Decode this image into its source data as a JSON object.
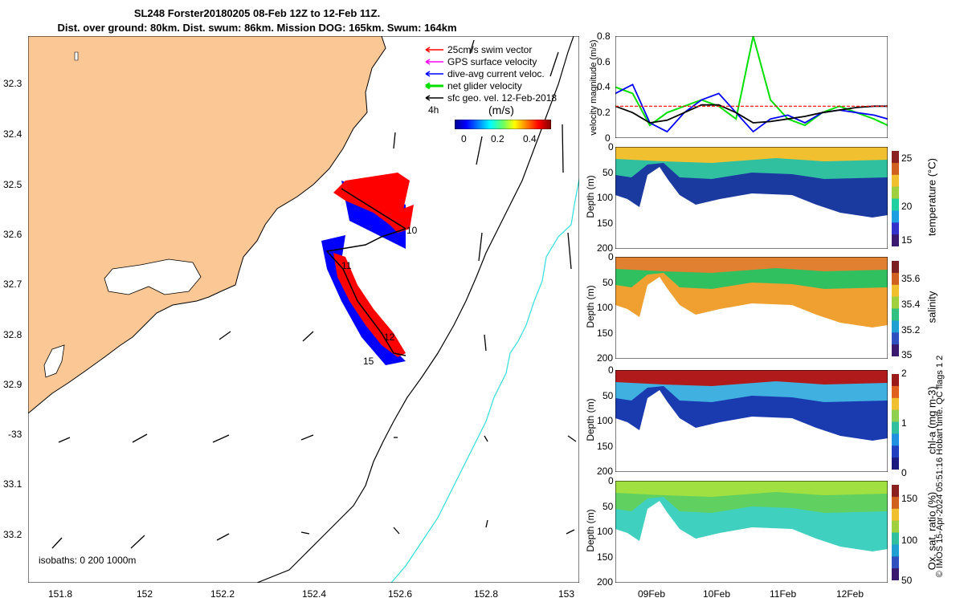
{
  "header": {
    "line1": "SL248 Forster20180205 08-Feb 12Z to 12-Feb 11Z.",
    "line2": "Dist. over ground: 80km. Dist. swum: 86km. Mission DOG: 165km. Swum: 164km"
  },
  "legend": {
    "items": [
      {
        "label": "25cm/s swim vector",
        "color": "#ff0000"
      },
      {
        "label": "GPS surface velocity",
        "color": "#ff00ff"
      },
      {
        "label": "dive-avg current veloc.",
        "color": "#0000ff"
      },
      {
        "label": "net glider velocity",
        "color": "#00e000"
      },
      {
        "label": "sfc geo. vel. 12-Feb-2018",
        "color": "#000000"
      }
    ],
    "interval": "4h",
    "colorbar_title": "(m/s)",
    "colorbar_ticks": [
      "0",
      "0.2",
      "0.4"
    ]
  },
  "map": {
    "lat_ticks": [
      "32.3",
      "32.4",
      "32.5",
      "32.6",
      "32.7",
      "32.8",
      "32.9",
      "-33",
      "33.1",
      "33.2"
    ],
    "lon_ticks": [
      "151.8",
      "152",
      "152.2",
      "152.4",
      "152.6",
      "152.8",
      "153"
    ],
    "track_labels": [
      "10",
      "11",
      "12",
      "15"
    ],
    "isobaths_label": "isobaths: 0   200  1000m",
    "colors": {
      "land": "#fbc895",
      "isobath200": "#000000",
      "isobath1000": "#33dddd"
    }
  },
  "chart_data": [
    {
      "type": "line",
      "title": "",
      "ylabel": "velocity magnitude (m/s)",
      "ylim": [
        0,
        0.8
      ],
      "y_ticks": [
        "0",
        "0.2",
        "0.4",
        "0.6",
        "0.8"
      ],
      "x": [
        0,
        0.25,
        0.5,
        0.75,
        1.0,
        1.25,
        1.5,
        1.75,
        2.0,
        2.25,
        2.5,
        2.75,
        3.0,
        3.25,
        3.5,
        3.75,
        3.95
      ],
      "series": [
        {
          "name": "net glider velocity",
          "color": "#00e000",
          "values": [
            0.4,
            0.35,
            0.1,
            0.2,
            0.25,
            0.3,
            0.25,
            0.15,
            0.8,
            0.3,
            0.15,
            0.1,
            0.2,
            0.25,
            0.2,
            0.15,
            0.1
          ]
        },
        {
          "name": "dive-avg current",
          "color": "#0000ff",
          "values": [
            0.35,
            0.42,
            0.12,
            0.05,
            0.2,
            0.3,
            0.35,
            0.2,
            0.05,
            0.15,
            0.18,
            0.12,
            0.2,
            0.22,
            0.2,
            0.18,
            0.15
          ]
        },
        {
          "name": "sfc geo. vel.",
          "color": "#000000",
          "values": [
            0.25,
            0.2,
            0.12,
            0.14,
            0.2,
            0.26,
            0.26,
            0.2,
            0.12,
            0.13,
            0.15,
            0.17,
            0.2,
            0.22,
            0.24,
            0.25,
            0.25
          ]
        },
        {
          "name": "swim",
          "color": "#ff0000",
          "values": [
            0.25,
            0.25,
            0.25,
            0.25,
            0.25,
            0.25,
            0.25,
            0.25,
            0.25,
            0.25,
            0.25,
            0.25,
            0.25,
            0.25,
            0.25,
            0.25,
            0.25
          ]
        }
      ]
    },
    {
      "type": "heatmap",
      "variable": "temperature (°C)",
      "ylabel": "Depth (m)",
      "ylim": [
        200,
        0
      ],
      "y_ticks": [
        "0",
        "50",
        "100",
        "150",
        "200"
      ],
      "colorbar_ticks": [
        "25",
        "20",
        "15"
      ],
      "clim": [
        13,
        27
      ]
    },
    {
      "type": "heatmap",
      "variable": "salinity",
      "ylabel": "Depth (m)",
      "ylim": [
        200,
        0
      ],
      "y_ticks": [
        "0",
        "50",
        "100",
        "150",
        "200"
      ],
      "colorbar_ticks": [
        "35.6",
        "35.4",
        "35.2",
        "35"
      ],
      "clim": [
        35,
        35.7
      ]
    },
    {
      "type": "heatmap",
      "variable": "chl-a (mg m-3)",
      "ylabel": "Depth (m)",
      "ylim": [
        200,
        0
      ],
      "y_ticks": [
        "0",
        "50",
        "100",
        "150",
        "200"
      ],
      "colorbar_ticks": [
        "2",
        "1",
        "0"
      ],
      "clim": [
        0,
        2
      ]
    },
    {
      "type": "heatmap",
      "variable": "Ox. sat. ratio (%)",
      "ylabel": "Depth (m)",
      "ylim": [
        200,
        0
      ],
      "y_ticks": [
        "0",
        "50",
        "100",
        "150",
        "200"
      ],
      "colorbar_ticks": [
        "150",
        "100",
        "50"
      ],
      "clim": [
        20,
        170
      ]
    }
  ],
  "time_axis": {
    "ticks": [
      "09Feb",
      "10Feb",
      "11Feb",
      "12Feb"
    ]
  },
  "footer": {
    "qc_note": "© IMOS 15-Apr-2024 05:51:16 Hobart time. QC flags 1  2"
  }
}
